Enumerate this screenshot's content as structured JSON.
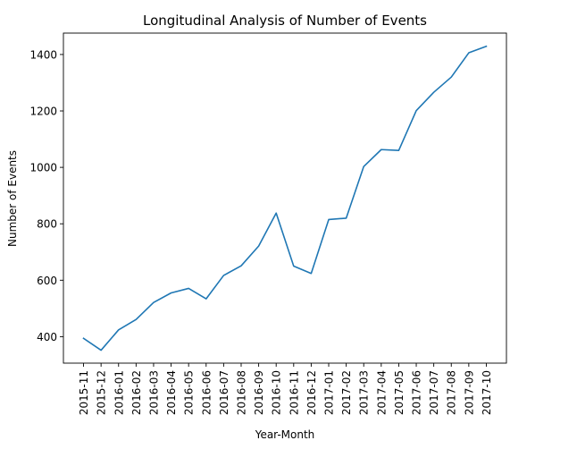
{
  "chart_data": {
    "type": "line",
    "title": "Longitudinal Analysis of Number of Events",
    "xlabel": "Year-Month",
    "ylabel": "Number of Events",
    "x": [
      "2015-11",
      "2015-12",
      "2016-01",
      "2016-02",
      "2016-03",
      "2016-04",
      "2016-05",
      "2016-06",
      "2016-07",
      "2016-08",
      "2016-09",
      "2016-10",
      "2016-11",
      "2016-12",
      "2017-01",
      "2017-02",
      "2017-03",
      "2017-04",
      "2017-05",
      "2017-06",
      "2017-07",
      "2017-08",
      "2017-09",
      "2017-10"
    ],
    "series": [
      {
        "values": [
          394,
          352,
          424,
          461,
          521,
          555,
          571,
          534,
          617,
          651,
          721,
          838,
          650,
          624,
          815,
          820,
          1003,
          1063,
          1060,
          1201,
          1266,
          1320,
          1406,
          1429
        ]
      }
    ],
    "ylim": [
      306.15,
      1475.85
    ],
    "yticks": [
      400,
      600,
      800,
      1000,
      1200,
      1400
    ],
    "line_color": "#1f77b4",
    "grid": false
  }
}
